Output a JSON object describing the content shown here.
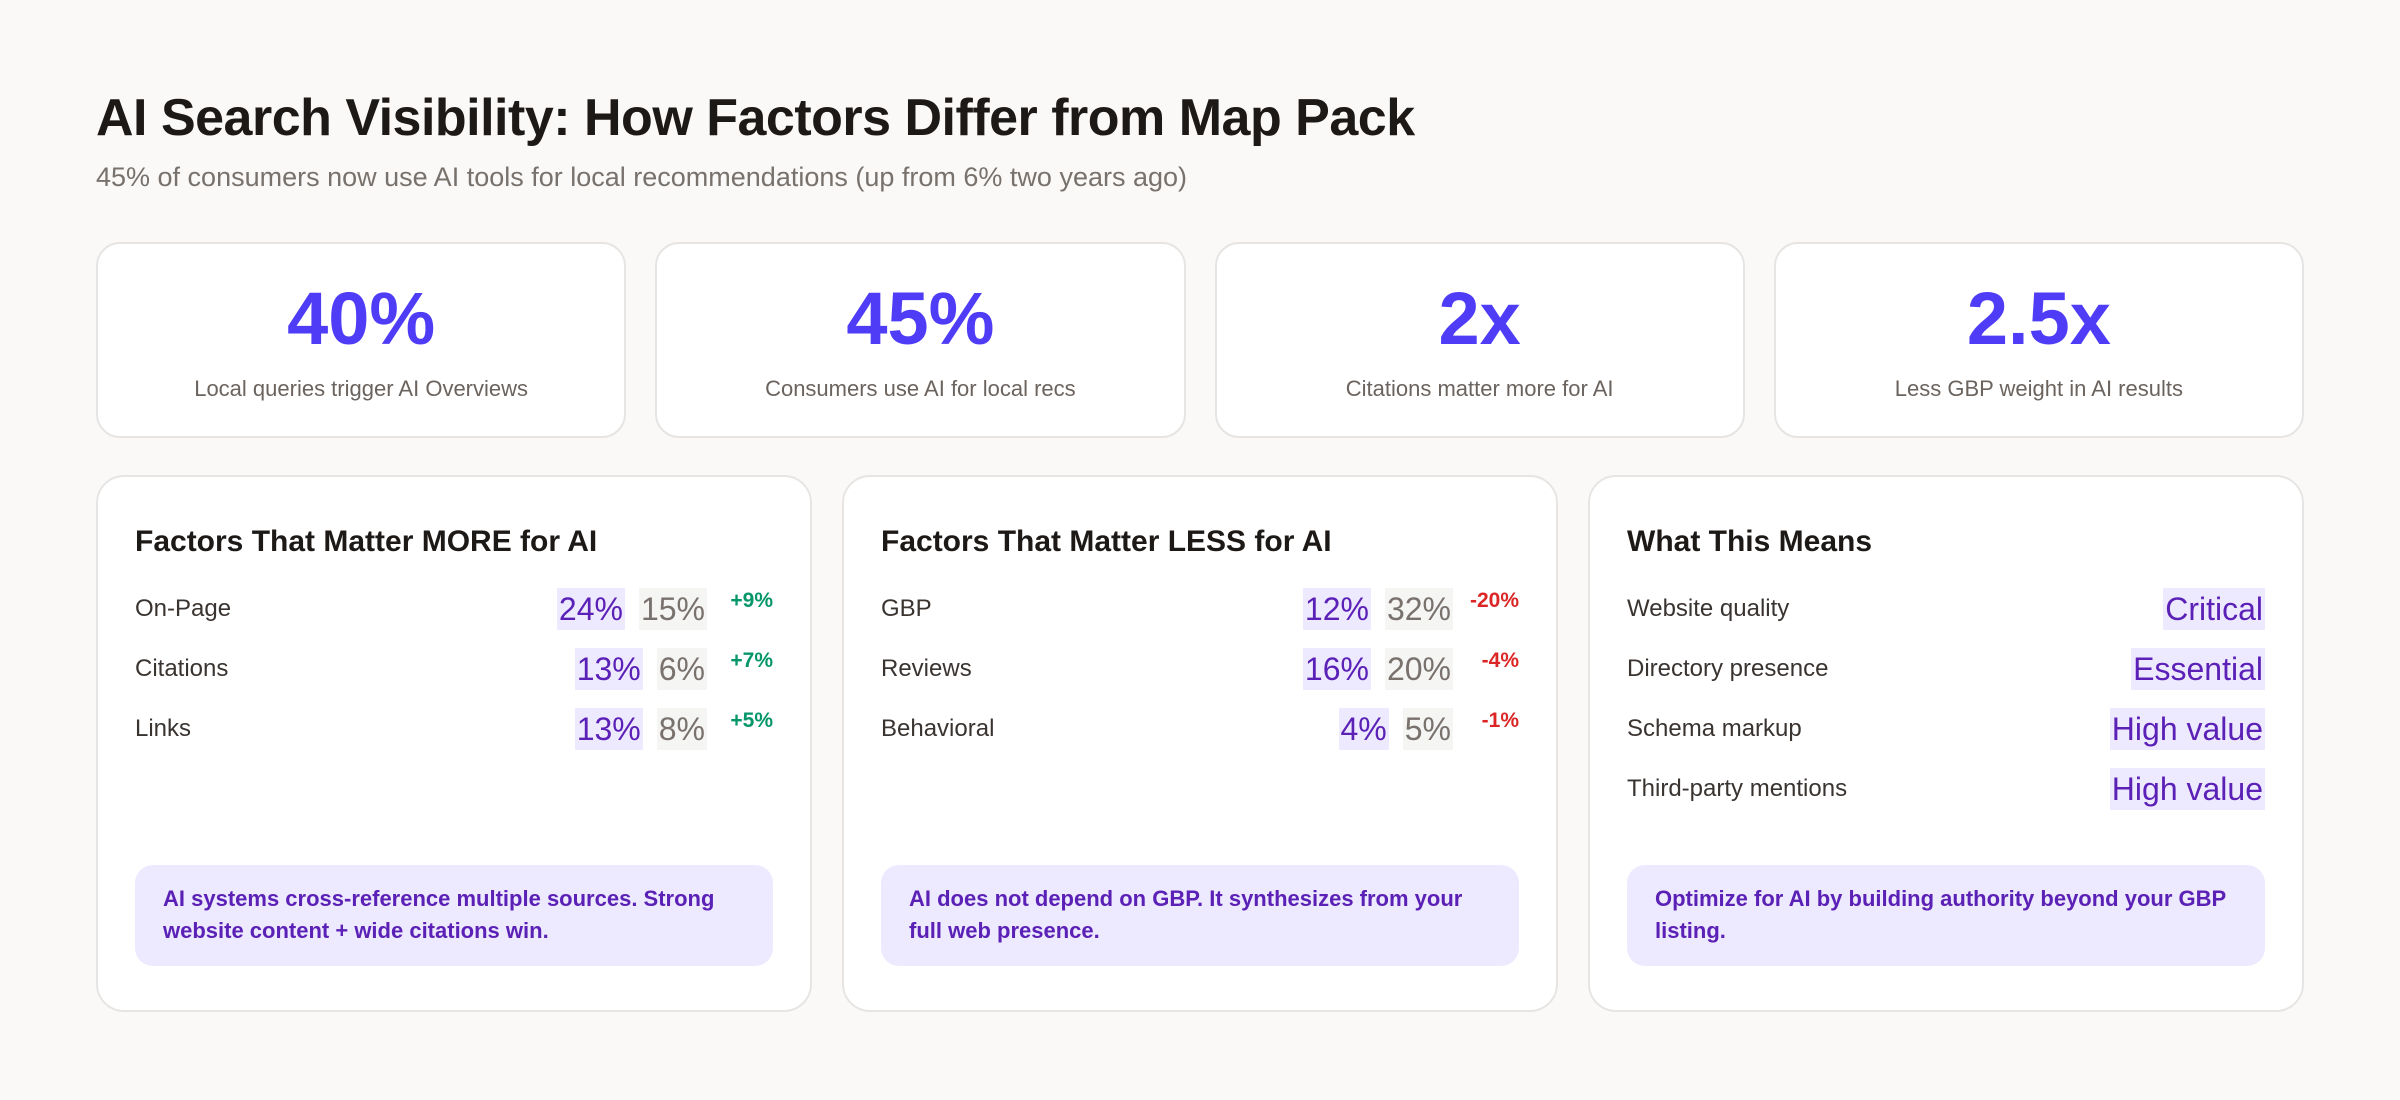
{
  "header": {
    "title": "AI Search Visibility: How Factors Differ from Map Pack",
    "subtitle": "45% of consumers now use AI tools for local recommendations (up from 6% two years ago)"
  },
  "stats": [
    {
      "value": "40%",
      "label": "Local queries trigger AI Overviews"
    },
    {
      "value": "45%",
      "label": "Consumers use AI for local recs"
    },
    {
      "value": "2x",
      "label": "Citations matter more for AI"
    },
    {
      "value": "2.5x",
      "label": "Less GBP weight in AI results"
    }
  ],
  "more": {
    "title": "Factors That Matter MORE for AI",
    "rows": [
      {
        "name": "On-Page",
        "ai": "24%",
        "map": "15%",
        "diff": "+9%"
      },
      {
        "name": "Citations",
        "ai": "13%",
        "map": "6%",
        "diff": "+7%"
      },
      {
        "name": "Links",
        "ai": "13%",
        "map": "8%",
        "diff": "+5%"
      }
    ],
    "note": "AI systems cross-reference multiple sources. Strong website content + wide citations win."
  },
  "less": {
    "title": "Factors That Matter LESS for AI",
    "rows": [
      {
        "name": "GBP",
        "ai": "12%",
        "map": "32%",
        "diff": "-20%"
      },
      {
        "name": "Reviews",
        "ai": "16%",
        "map": "20%",
        "diff": "-4%"
      },
      {
        "name": "Behavioral",
        "ai": "4%",
        "map": "5%",
        "diff": "-1%"
      }
    ],
    "note": "AI does not depend on GBP. It synthesizes from your full web presence."
  },
  "means": {
    "title": "What This Means",
    "rows": [
      {
        "name": "Website quality",
        "value": "Critical"
      },
      {
        "name": "Directory presence",
        "value": "Essential"
      },
      {
        "name": "Schema markup",
        "value": "High value"
      },
      {
        "name": "Third-party mentions",
        "value": "High value"
      }
    ],
    "note": "Optimize for AI by building authority beyond your GBP listing."
  },
  "colors": {
    "accent": "#4f3cf7",
    "ai": "#5b21b6",
    "positive": "#059669",
    "negative": "#dc2626",
    "callout_bg": "#ede9fe"
  }
}
